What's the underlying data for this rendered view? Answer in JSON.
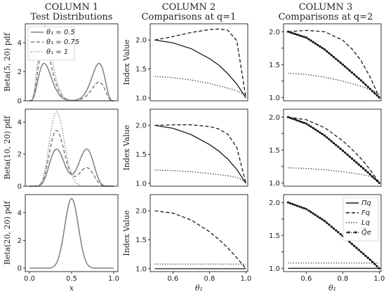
{
  "columns": [
    {
      "heading": "COLUMN 1",
      "subheading": "Test Distributions"
    },
    {
      "heading": "COLUMN 2",
      "subheading": "Comparisons at q=1"
    },
    {
      "heading": "COLUMN 3",
      "subheading": "Comparisons at q=2"
    }
  ],
  "chart_data": [
    {
      "type": "line",
      "panel": "col1-row1",
      "ylabel": "Beta(5, 20) pdf",
      "xlabel": "",
      "xlim": [
        -0.05,
        1.05
      ],
      "ylim": [
        0,
        5.3
      ],
      "xticks": [],
      "yticks": [
        0,
        2,
        4
      ],
      "dist": {
        "a": 5,
        "b": 20
      },
      "legend": {
        "placement": "top-left",
        "entries": [
          "θ₁ = 0.5",
          "θ₁ = 0.75",
          "θ₁ = 1"
        ]
      },
      "series": [
        {
          "name": "θ₁ = 0.5",
          "theta": 0.5,
          "style": "solid"
        },
        {
          "name": "θ₁ = 0.75",
          "theta": 0.75,
          "style": "dashed"
        },
        {
          "name": "θ₁ = 1",
          "theta": 1.0,
          "style": "dotted"
        }
      ]
    },
    {
      "type": "line",
      "panel": "col1-row2",
      "ylabel": "Beta(10, 20) pdf",
      "xlabel": "",
      "xlim": [
        -0.05,
        1.05
      ],
      "ylim": [
        0,
        4.8
      ],
      "xticks": [],
      "yticks": [
        0,
        2,
        4
      ],
      "dist": {
        "a": 10,
        "b": 20
      },
      "series": [
        {
          "theta": 0.5,
          "style": "solid"
        },
        {
          "theta": 0.75,
          "style": "dashed"
        },
        {
          "theta": 1.0,
          "style": "dotted"
        }
      ]
    },
    {
      "type": "line",
      "panel": "col1-row3",
      "ylabel": "Beta(20, 20) pdf",
      "xlabel": "x",
      "xlim": [
        -0.05,
        1.05
      ],
      "ylim": [
        -0.25,
        5.3
      ],
      "xticks": [
        0.0,
        0.5,
        1.0
      ],
      "yticks": [
        0,
        2,
        4
      ],
      "dist": {
        "a": 20,
        "b": 20
      },
      "series": [
        {
          "theta": 0.5,
          "style": "solid"
        }
      ]
    },
    {
      "type": "line",
      "panel": "col2-row1",
      "ylabel": "Index Value",
      "xlabel": "",
      "xlim": [
        0.475,
        1.01
      ],
      "ylim": [
        0.95,
        2.28
      ],
      "xticks": [],
      "yticks": [
        1.0,
        1.5,
        2.0
      ],
      "x": [
        0.5,
        0.6,
        0.7,
        0.8,
        0.85,
        0.9,
        0.95,
        1.0
      ],
      "series": [
        {
          "name": "Πq",
          "style": "solid",
          "values": [
            2.0,
            1.95,
            1.85,
            1.68,
            1.57,
            1.42,
            1.24,
            1.0
          ]
        },
        {
          "name": "Fq",
          "style": "dashed",
          "values": [
            2.0,
            2.06,
            2.13,
            2.18,
            2.19,
            2.17,
            1.99,
            1.0
          ]
        },
        {
          "name": "Lq",
          "style": "dotted",
          "values": [
            1.37,
            1.35,
            1.31,
            1.25,
            1.21,
            1.17,
            1.12,
            1.05
          ]
        }
      ]
    },
    {
      "type": "line",
      "panel": "col2-row2",
      "ylabel": "Index Value",
      "xlabel": "",
      "xlim": [
        0.475,
        1.01
      ],
      "ylim": [
        0.95,
        2.28
      ],
      "xticks": [],
      "yticks": [
        1.0,
        1.5,
        2.0
      ],
      "x": [
        0.5,
        0.6,
        0.7,
        0.8,
        0.85,
        0.9,
        0.95,
        1.0
      ],
      "series": [
        {
          "name": "Πq",
          "style": "solid",
          "values": [
            2.0,
            1.95,
            1.84,
            1.67,
            1.56,
            1.42,
            1.24,
            1.0
          ]
        },
        {
          "name": "Fq",
          "style": "dashed",
          "values": [
            2.0,
            2.01,
            2.01,
            1.98,
            1.94,
            1.85,
            1.62,
            1.0
          ]
        },
        {
          "name": "Lq",
          "style": "dotted",
          "values": [
            1.23,
            1.22,
            1.2,
            1.17,
            1.15,
            1.13,
            1.1,
            1.03
          ]
        }
      ]
    },
    {
      "type": "line",
      "panel": "col2-row3",
      "ylabel": "Index Value",
      "xlabel": "θ₁",
      "xlim": [
        0.475,
        1.01
      ],
      "ylim": [
        0.95,
        2.28
      ],
      "xticks": [
        0.6,
        0.8,
        1.0
      ],
      "yticks": [
        1.0,
        1.5,
        2.0
      ],
      "x": [
        0.5,
        0.6,
        0.7,
        0.8,
        0.85,
        0.9,
        0.95,
        1.0
      ],
      "series": [
        {
          "name": "Πq",
          "style": "solid",
          "values": [
            1.0,
            1.0,
            1.0,
            1.0,
            1.0,
            1.0,
            1.0,
            1.0
          ]
        },
        {
          "name": "Fq",
          "style": "dashed",
          "values": [
            2.0,
            1.96,
            1.84,
            1.64,
            1.51,
            1.36,
            1.19,
            1.0
          ]
        },
        {
          "name": "Lq",
          "style": "dotted",
          "values": [
            1.08,
            1.08,
            1.08,
            1.08,
            1.08,
            1.08,
            1.08,
            1.08
          ]
        }
      ]
    },
    {
      "type": "line",
      "panel": "col3-row1",
      "ylabel": "",
      "xlabel": "",
      "xlim": [
        0.475,
        1.01
      ],
      "ylim": [
        0.95,
        2.12
      ],
      "xticks": [],
      "yticks": [
        1.0,
        1.25,
        1.5,
        1.75,
        2.0
      ],
      "x": [
        0.5,
        0.6,
        0.7,
        0.8,
        0.85,
        0.9,
        0.95,
        1.0
      ],
      "series": [
        {
          "name": "Πq",
          "style": "solid",
          "values": [
            2.0,
            1.91,
            1.73,
            1.5,
            1.38,
            1.26,
            1.13,
            1.0
          ]
        },
        {
          "name": "Fq",
          "style": "dashed",
          "values": [
            2.0,
            2.02,
            2.0,
            1.87,
            1.74,
            1.56,
            1.31,
            1.0
          ]
        },
        {
          "name": "Lq",
          "style": "dotted",
          "values": [
            1.37,
            1.35,
            1.31,
            1.25,
            1.21,
            1.17,
            1.12,
            1.05
          ]
        },
        {
          "name": "Q̂e",
          "style": "dashdot-marker",
          "values": [
            2.0,
            1.91,
            1.73,
            1.5,
            1.38,
            1.26,
            1.13,
            1.0
          ]
        }
      ]
    },
    {
      "type": "line",
      "panel": "col3-row2",
      "ylabel": "",
      "xlabel": "",
      "xlim": [
        0.475,
        1.01
      ],
      "ylim": [
        0.95,
        2.12
      ],
      "xticks": [],
      "yticks": [
        1.0,
        1.25,
        1.5,
        1.75,
        2.0
      ],
      "x": [
        0.5,
        0.6,
        0.7,
        0.8,
        0.85,
        0.9,
        0.95,
        1.0
      ],
      "series": [
        {
          "name": "Πq",
          "style": "solid",
          "values": [
            2.0,
            1.9,
            1.72,
            1.49,
            1.37,
            1.25,
            1.13,
            1.0
          ]
        },
        {
          "name": "Fq",
          "style": "dashed",
          "values": [
            2.0,
            1.96,
            1.84,
            1.64,
            1.51,
            1.37,
            1.2,
            1.0
          ]
        },
        {
          "name": "Lq",
          "style": "dotted",
          "values": [
            1.23,
            1.22,
            1.2,
            1.17,
            1.15,
            1.13,
            1.1,
            1.03
          ]
        },
        {
          "name": "Q̂e",
          "style": "dashdot-marker",
          "values": [
            2.0,
            1.9,
            1.72,
            1.49,
            1.37,
            1.25,
            1.13,
            1.0
          ]
        }
      ]
    },
    {
      "type": "line",
      "panel": "col3-row3",
      "ylabel": "",
      "xlabel": "θ₁",
      "xlim": [
        0.475,
        1.01
      ],
      "ylim": [
        0.95,
        2.12
      ],
      "xticks": [
        0.6,
        0.8,
        1.0
      ],
      "yticks": [
        1.0,
        1.25,
        1.5,
        1.75,
        2.0
      ],
      "legend": {
        "placement": "top-right",
        "entries": [
          "Πq",
          "Fq",
          "Lq",
          "Q̂e"
        ]
      },
      "x": [
        0.5,
        0.6,
        0.7,
        0.8,
        0.85,
        0.9,
        0.95,
        1.0
      ],
      "series": [
        {
          "name": "Πq",
          "style": "solid",
          "values": [
            1.0,
            1.0,
            1.0,
            1.0,
            1.0,
            1.0,
            1.0,
            1.0
          ]
        },
        {
          "name": "Fq",
          "style": "dashed",
          "values": [
            2.0,
            1.9,
            1.72,
            1.49,
            1.37,
            1.25,
            1.13,
            1.0
          ]
        },
        {
          "name": "Lq",
          "style": "dotted",
          "values": [
            1.08,
            1.08,
            1.08,
            1.08,
            1.08,
            1.08,
            1.08,
            1.08
          ]
        },
        {
          "name": "Q̂e",
          "style": "dashdot-marker",
          "values": [
            2.0,
            1.9,
            1.72,
            1.49,
            1.37,
            1.25,
            1.13,
            1.0
          ]
        }
      ]
    }
  ]
}
